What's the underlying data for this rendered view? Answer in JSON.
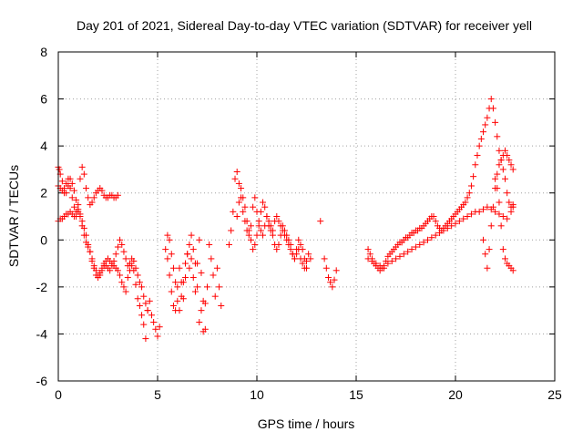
{
  "chart_data": {
    "type": "scatter",
    "title": "Day 201 of 2021, Sidereal Day-to-day VTEC variation (SDTVAR) for receiver yell",
    "xlabel": "GPS time / hours",
    "ylabel": "SDTVAR / TECUs",
    "xlim": [
      0,
      25
    ],
    "ylim": [
      -6,
      8
    ],
    "xticks": [
      0,
      5,
      10,
      15,
      20,
      25
    ],
    "yticks": [
      -6,
      -4,
      -2,
      0,
      2,
      4,
      6,
      8
    ],
    "xtick_labels": [
      "0",
      "5",
      "10",
      "15",
      "20",
      "25"
    ],
    "ytick_labels": [
      "-6",
      "-4",
      "-2",
      "0",
      "2",
      "4",
      "6",
      "8"
    ],
    "grid": true,
    "marker": "+",
    "color": "#ff0000",
    "series": [
      {
        "name": "SDTVAR",
        "x": [
          0.0,
          0.05,
          0.1,
          0.2,
          0.3,
          0.4,
          0.5,
          0.6,
          0.7,
          0.8,
          0.9,
          1.0,
          1.1,
          1.2,
          1.3,
          1.4,
          1.5,
          1.6,
          1.7,
          1.8,
          1.9,
          2.0,
          2.1,
          2.2,
          2.3,
          2.4,
          2.5,
          2.6,
          2.7,
          2.8,
          2.9,
          3.0,
          3.1,
          3.2,
          3.3,
          3.4,
          3.5,
          3.6,
          3.7,
          3.8,
          3.9,
          4.0,
          4.1,
          4.2,
          4.3,
          4.4,
          4.5,
          4.6,
          4.7,
          4.8,
          4.9,
          5.0,
          5.1,
          0.0,
          0.1,
          0.2,
          0.3,
          0.4,
          0.5,
          0.6,
          0.7,
          0.8,
          0.9,
          1.0,
          1.1,
          1.2,
          1.3,
          1.4,
          1.5,
          1.6,
          1.7,
          1.8,
          1.9,
          2.0,
          2.1,
          2.2,
          2.3,
          2.4,
          2.5,
          2.6,
          2.7,
          2.8,
          2.9,
          3.0,
          0.0,
          0.1,
          0.2,
          0.3,
          0.4,
          0.5,
          0.6,
          0.7,
          0.8,
          0.9,
          1.0,
          1.1,
          1.2,
          1.3,
          1.4,
          1.5,
          1.6,
          1.7,
          1.8,
          1.9,
          2.0,
          2.1,
          2.2,
          2.3,
          2.4,
          2.5,
          2.6,
          2.7,
          2.8,
          2.9,
          3.0,
          3.1,
          3.2,
          3.3,
          3.4,
          3.5,
          3.6,
          3.7,
          3.8,
          3.9,
          4.0,
          4.1,
          4.2,
          4.3,
          4.4,
          4.5,
          5.4,
          5.5,
          5.6,
          5.7,
          5.8,
          5.9,
          6.0,
          6.1,
          6.2,
          6.3,
          6.4,
          6.5,
          6.6,
          6.7,
          6.8,
          6.9,
          7.0,
          7.1,
          7.2,
          7.3,
          7.4,
          7.5,
          7.6,
          7.7,
          7.8,
          7.9,
          8.0,
          8.1,
          8.2,
          5.5,
          5.6,
          5.7,
          5.8,
          5.9,
          6.0,
          6.1,
          6.2,
          6.3,
          6.4,
          6.5,
          6.6,
          6.7,
          6.8,
          6.9,
          7.0,
          7.1,
          7.2,
          7.3,
          7.4,
          8.6,
          8.7,
          8.8,
          8.9,
          9.0,
          9.1,
          9.2,
          9.3,
          9.4,
          9.5,
          9.6,
          9.7,
          9.8,
          9.9,
          10.0,
          10.1,
          10.2,
          10.3,
          10.4,
          10.5,
          10.6,
          10.7,
          10.8,
          10.9,
          11.0,
          11.1,
          11.2,
          11.3,
          11.4,
          11.5,
          11.6,
          11.7,
          11.8,
          11.9,
          12.0,
          12.1,
          12.2,
          12.3,
          12.4,
          12.5,
          12.6,
          12.7,
          9.0,
          9.1,
          9.2,
          9.3,
          9.4,
          9.5,
          9.6,
          9.7,
          9.8,
          9.9,
          10.0,
          10.1,
          10.2,
          10.3,
          10.4,
          10.5,
          10.6,
          10.7,
          10.8,
          10.9,
          11.0,
          11.1,
          11.2,
          11.3,
          11.4,
          11.5,
          11.6,
          11.7,
          11.8,
          11.9,
          12.0,
          12.1,
          12.2,
          12.3,
          12.4,
          12.5,
          13.2,
          13.4,
          13.5,
          13.6,
          13.7,
          13.8,
          13.9,
          14.0,
          15.6,
          15.7,
          15.8,
          15.9,
          16.0,
          16.1,
          16.2,
          16.3,
          16.4,
          16.5,
          16.6,
          16.7,
          16.8,
          16.9,
          17.0,
          17.1,
          17.2,
          17.3,
          17.4,
          17.5,
          17.6,
          17.7,
          17.8,
          17.9,
          18.0,
          18.1,
          18.2,
          18.3,
          18.4,
          18.5,
          18.6,
          18.7,
          18.8,
          18.9,
          19.0,
          19.1,
          19.2,
          19.3,
          19.4,
          19.5,
          19.6,
          19.7,
          19.8,
          19.9,
          20.0,
          20.1,
          20.2,
          20.3,
          20.4,
          20.5,
          20.6,
          20.7,
          20.8,
          20.9,
          21.0,
          21.1,
          21.2,
          21.3,
          21.4,
          21.5,
          21.6,
          21.7,
          21.8,
          21.9,
          22.0,
          22.1,
          22.2,
          22.3,
          22.4,
          22.5,
          22.6,
          22.7,
          22.8,
          22.9,
          15.6,
          15.8,
          16.0,
          16.2,
          16.4,
          16.6,
          16.8,
          17.0,
          17.2,
          17.4,
          17.6,
          17.8,
          18.0,
          18.2,
          18.4,
          18.6,
          18.8,
          19.0,
          19.2,
          19.4,
          19.6,
          19.8,
          20.0,
          20.2,
          20.4,
          20.6,
          20.8,
          21.0,
          21.2,
          21.4,
          21.6,
          21.8,
          22.0,
          22.2,
          22.4,
          22.6,
          22.8,
          22.9,
          21.4,
          21.5,
          21.6,
          21.7,
          21.8,
          21.9,
          22.0,
          22.1,
          22.2,
          22.3,
          22.4,
          22.5,
          22.6,
          22.7,
          22.8,
          22.9,
          22.0,
          22.1,
          22.2,
          22.3,
          22.4,
          22.5,
          22.6,
          22.7,
          22.8,
          22.9
        ],
        "y": [
          3.1,
          3.0,
          2.8,
          2.5,
          2.2,
          2.0,
          2.3,
          2.6,
          2.4,
          2.1,
          1.7,
          1.2,
          1.0,
          0.6,
          0.2,
          -0.1,
          -0.3,
          -0.5,
          -0.9,
          -1.2,
          -1.5,
          -1.6,
          -1.5,
          -1.3,
          -1.1,
          -0.9,
          -0.8,
          -0.9,
          -1.0,
          -1.1,
          -1.2,
          -1.3,
          -1.5,
          -1.8,
          -2.0,
          -2.2,
          -1.6,
          -1.0,
          -0.8,
          -1.3,
          -1.9,
          -2.5,
          -2.8,
          -3.2,
          -3.6,
          -4.2,
          -3.0,
          -2.6,
          -3.2,
          -3.5,
          -3.8,
          -4.1,
          -3.7,
          2.3,
          2.2,
          2.1,
          2.0,
          2.4,
          2.6,
          2.2,
          1.8,
          1.4,
          1.0,
          1.5,
          2.6,
          3.1,
          2.8,
          2.2,
          1.8,
          1.5,
          1.6,
          1.8,
          2.0,
          2.1,
          2.2,
          2.1,
          1.9,
          1.8,
          1.8,
          1.9,
          1.9,
          1.8,
          1.8,
          1.9,
          0.8,
          0.9,
          0.9,
          1.0,
          1.1,
          1.1,
          1.2,
          1.1,
          1.0,
          1.2,
          1.3,
          1.1,
          0.8,
          0.5,
          0.2,
          -0.2,
          -0.5,
          -0.8,
          -1.1,
          -1.3,
          -1.5,
          -1.4,
          -1.2,
          -1.0,
          -1.1,
          -1.2,
          -1.3,
          -1.1,
          -0.9,
          -0.6,
          -0.3,
          0.0,
          -0.2,
          -0.5,
          -0.8,
          -1.1,
          -1.3,
          -1.1,
          -0.9,
          -1.2,
          -1.5,
          -1.8,
          -2.0,
          -2.4,
          -2.7,
          -3.0,
          -0.4,
          -0.8,
          -1.5,
          -2.2,
          -2.8,
          -3.0,
          -2.0,
          -1.2,
          -1.8,
          -2.5,
          -1.6,
          -0.6,
          -1.2,
          -0.8,
          -1.6,
          -2.2,
          -1.0,
          0.0,
          -1.4,
          -2.6,
          -3.8,
          -2.0,
          -0.2,
          -0.8,
          -1.5,
          -2.4,
          -1.2,
          -2.0,
          -2.8,
          0.2,
          0.0,
          -0.6,
          -1.2,
          -1.8,
          -2.6,
          -3.0,
          -2.4,
          -1.8,
          -1.0,
          -0.6,
          -0.2,
          0.2,
          -0.4,
          -1.0,
          -2.0,
          -3.5,
          -3.0,
          -3.9,
          -2.7,
          -0.2,
          0.4,
          1.2,
          2.6,
          2.9,
          2.4,
          1.8,
          1.2,
          0.8,
          0.4,
          0.2,
          0.6,
          1.4,
          1.8,
          1.2,
          0.8,
          0.4,
          0.2,
          0.6,
          1.0,
          0.8,
          0.6,
          0.4,
          0.8,
          1.0,
          0.8,
          0.6,
          0.4,
          0.2,
          0.0,
          -0.2,
          -0.4,
          -0.6,
          -0.8,
          -0.6,
          -0.4,
          -0.8,
          -1.0,
          -1.2,
          -0.9,
          -0.6,
          -0.8,
          1.0,
          1.6,
          2.2,
          1.8,
          1.4,
          0.8,
          0.4,
          0.0,
          -0.4,
          -0.2,
          0.2,
          0.6,
          1.2,
          1.6,
          1.4,
          1.0,
          0.6,
          0.4,
          0.2,
          -0.2,
          -0.4,
          -0.2,
          0.2,
          0.6,
          0.4,
          0.2,
          0.0,
          -0.2,
          -0.6,
          -0.8,
          -0.4,
          0.0,
          -0.2,
          -0.4,
          -0.8,
          -1.2,
          0.8,
          -0.8,
          -1.2,
          -1.6,
          -1.8,
          -2.0,
          -1.7,
          -1.3,
          -0.4,
          -0.6,
          -0.8,
          -1.0,
          -1.1,
          -1.2,
          -1.3,
          -1.2,
          -1.1,
          -0.9,
          -0.7,
          -0.6,
          -0.5,
          -0.4,
          -0.3,
          -0.2,
          -0.1,
          -0.1,
          0.0,
          0.1,
          0.1,
          0.2,
          0.3,
          0.3,
          0.4,
          0.4,
          0.5,
          0.5,
          0.6,
          0.7,
          0.8,
          0.9,
          1.0,
          1.0,
          0.8,
          0.6,
          0.5,
          0.4,
          0.5,
          0.6,
          0.7,
          0.8,
          0.9,
          1.0,
          1.1,
          1.2,
          1.3,
          1.4,
          1.5,
          1.6,
          1.8,
          2.0,
          2.3,
          2.7,
          3.2,
          3.6,
          4.0,
          4.3,
          4.6,
          4.9,
          5.2,
          5.6,
          6.0,
          5.6,
          5.0,
          4.4,
          3.8,
          3.4,
          3.0,
          2.6,
          2.0,
          1.6,
          1.4,
          1.5,
          -0.8,
          -0.9,
          -1.0,
          -1.1,
          -1.2,
          -1.0,
          -0.9,
          -0.8,
          -0.7,
          -0.6,
          -0.5,
          -0.4,
          -0.3,
          -0.2,
          -0.1,
          0.0,
          0.1,
          0.2,
          0.3,
          0.4,
          0.5,
          0.6,
          0.7,
          0.8,
          0.9,
          1.0,
          1.1,
          1.2,
          1.2,
          1.3,
          1.4,
          1.3,
          1.2,
          1.1,
          1.0,
          0.9,
          1.2,
          1.4,
          0.0,
          -0.6,
          -1.2,
          -0.4,
          0.6,
          1.4,
          2.2,
          2.8,
          3.2,
          3.4,
          3.6,
          3.8,
          3.6,
          3.4,
          3.2,
          3.0,
          2.6,
          2.2,
          1.6,
          0.6,
          -0.4,
          -0.8,
          -1.0,
          -1.1,
          -1.2,
          -1.3
        ]
      }
    ]
  }
}
